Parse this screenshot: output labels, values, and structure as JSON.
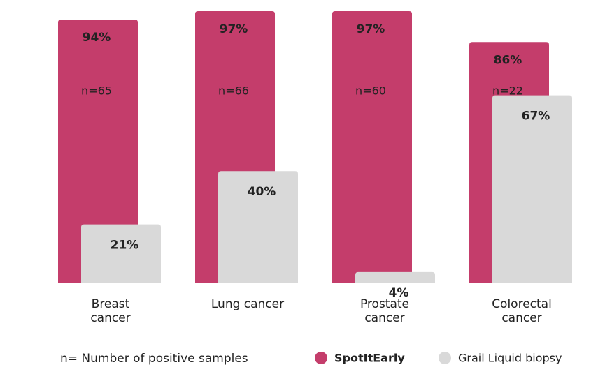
{
  "chart_data": {
    "type": "bar",
    "categories": [
      "Breast cancer",
      "Lung cancer",
      "Prostate cancer",
      "Colorectal cancer"
    ],
    "ylim": [
      0,
      100
    ],
    "series": [
      {
        "name": "SpotItEarly",
        "color": "#c43d6b",
        "values": [
          94,
          97,
          97,
          86
        ],
        "value_labels": [
          "94%",
          "97%",
          "97%",
          "86%"
        ],
        "sample_labels": [
          "n=65",
          "n=66",
          "n=60",
          "n=22"
        ]
      },
      {
        "name": "Grail Liquid biopsy",
        "color": "#d9d9d9",
        "values": [
          21,
          40,
          4,
          67
        ],
        "value_labels": [
          "21%",
          "40%",
          "4%",
          "67%"
        ]
      }
    ],
    "footnote": "n= Number of positive samples"
  }
}
